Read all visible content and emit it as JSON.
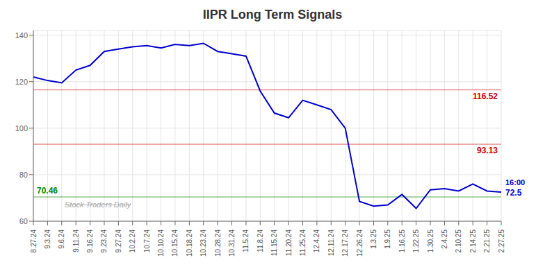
{
  "chart_data": {
    "type": "line",
    "title": "IIPR Long Term Signals",
    "categories": [
      "8.27.24",
      "9.3.24",
      "9.6.24",
      "9.11.24",
      "9.16.24",
      "9.23.24",
      "9.27.24",
      "10.2.24",
      "10.7.24",
      "10.10.24",
      "10.15.24",
      "10.18.24",
      "10.23.24",
      "10.28.24",
      "10.31.24",
      "11.5.24",
      "11.8.24",
      "11.15.24",
      "11.20.24",
      "11.25.24",
      "12.4.24",
      "12.11.24",
      "12.17.24",
      "12.26.24",
      "1.3.25",
      "1.9.25",
      "1.16.25",
      "1.22.25",
      "1.30.25",
      "2.4.25",
      "2.10.25",
      "2.14.25",
      "2.21.25",
      "2.27.25"
    ],
    "values": [
      122.0,
      120.5,
      119.5,
      125.0,
      127.0,
      133.0,
      134.0,
      135.0,
      135.5,
      134.5,
      136.0,
      135.5,
      136.5,
      133.0,
      132.0,
      131.0,
      116.0,
      106.5,
      104.5,
      112.0,
      110.0,
      108.0,
      100.0,
      68.5,
      66.5,
      67.0,
      71.5,
      65.5,
      73.5,
      74.0,
      73.0,
      76.0,
      73.0,
      72.5
    ],
    "color": "#0000cc",
    "ylim": [
      60,
      142
    ],
    "yticks": [
      60,
      80,
      100,
      120,
      140
    ],
    "grid": true,
    "reference_lines": [
      {
        "value": 116.52,
        "label": "116.52",
        "color": "#cc0000"
      },
      {
        "value": 93.13,
        "label": "93.13",
        "color": "#cc0000"
      },
      {
        "value": 70.46,
        "label": "70.46",
        "color": "#008800"
      }
    ],
    "annotations": [
      {
        "text": "16:00",
        "color": "#0000cc"
      },
      {
        "text": "72.5",
        "color": "#0000cc"
      }
    ],
    "watermark": "Stock Traders Daily"
  }
}
